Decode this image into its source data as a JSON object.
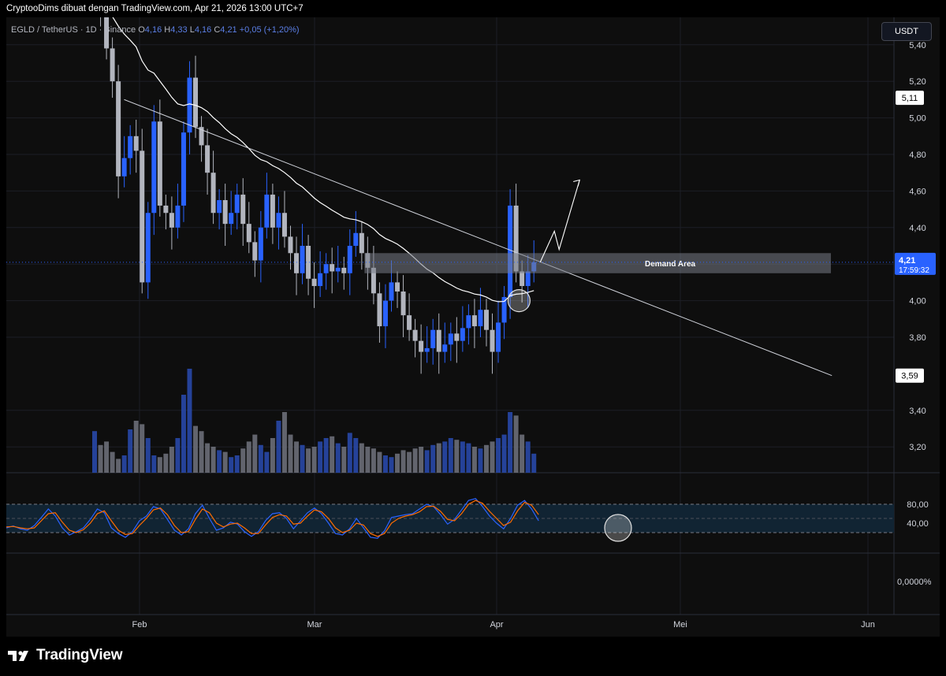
{
  "header": {
    "publisher_line": "CryptooDims dibuat dengan TradingView.com, Apr 21, 2026 13:00 UTC+7"
  },
  "legend": {
    "symbol": "EGLD / TetherUS · 1D · Binance",
    "o_label": "O",
    "o_value": "4,16",
    "h_label": "H",
    "h_value": "4,33",
    "l_label": "L",
    "l_value": "4,16",
    "c_label": "C",
    "c_value": "4,21",
    "change": "+0,05 (+1,20%)"
  },
  "currency_button": "USDT",
  "footer": {
    "logo_text": "TradingView"
  },
  "colors": {
    "bull": "#2962ff",
    "bear": "#b2b5be",
    "ma_line": "#ffffff",
    "stoch_k": "#2962ff",
    "stoch_d": "#ff6d00",
    "demand_zone": "#787b86"
  },
  "chart_data": [
    {
      "type": "candlestick",
      "symbol": "EGLD / TetherUS",
      "timeframe": "1D",
      "ylim": [
        3.05,
        5.55
      ],
      "y_ticks": [
        5.4,
        5.2,
        5.0,
        4.8,
        4.6,
        4.4,
        4.2,
        4.0,
        3.8,
        3.4,
        3.2
      ],
      "y_tick_labels": [
        "5,40",
        "5,20",
        "5,00",
        "4,80",
        "4,60",
        "4,40",
        "4,20",
        "4,00",
        "3,80",
        "3,40",
        "3,20"
      ],
      "x_tick_labels": [
        "Feb",
        "Mar",
        "Apr",
        "Mei",
        "Jun"
      ],
      "price_labels": [
        {
          "value": 5.11,
          "label": "5,11"
        },
        {
          "value": 3.59,
          "label": "3,59"
        }
      ],
      "last_price": {
        "value": 4.21,
        "label": "4,21",
        "countdown": "17:59:32"
      },
      "closes": [
        5.7,
        5.62,
        5.38,
        5.2,
        4.68,
        4.78,
        4.9,
        4.82,
        4.1,
        4.48,
        4.98,
        4.52,
        4.48,
        4.4,
        4.52,
        4.92,
        5.22,
        4.95,
        4.85,
        4.7,
        4.48,
        4.55,
        4.42,
        4.48,
        4.58,
        4.42,
        4.32,
        4.22,
        4.4,
        4.58,
        4.4,
        4.48,
        4.35,
        4.26,
        4.15,
        4.3,
        4.12,
        4.08,
        4.15,
        4.2,
        4.16,
        4.18,
        4.15,
        4.3,
        4.37,
        4.26,
        4.18,
        4.04,
        3.86,
        4.0,
        4.1,
        4.05,
        3.92,
        3.84,
        3.78,
        3.72,
        3.74,
        3.84,
        3.72,
        3.76,
        3.82,
        3.78,
        3.85,
        3.92,
        3.86,
        3.95,
        3.84,
        3.72,
        3.88,
        4.02,
        4.52,
        4.16,
        4.08,
        4.16,
        4.21
      ],
      "moving_average_start": [
        5.8,
        5.68,
        5.58
      ],
      "trendline": {
        "from": [
          4.98,
          5.1
        ],
        "to": [
          124.2,
          3.59
        ]
      },
      "demand_area": {
        "label": "Demand Area",
        "top": 4.26,
        "bottom": 4.15
      },
      "projection": [
        [
          4.21
        ],
        [
          4.38
        ],
        [
          4.28
        ],
        [
          4.66
        ]
      ],
      "volume": [
        24,
        16,
        18,
        12,
        8,
        10,
        25,
        30,
        28,
        20,
        10,
        9,
        11,
        15,
        20,
        45,
        60,
        27,
        24,
        17,
        15,
        13,
        12,
        9,
        10,
        14,
        18,
        22,
        16,
        12,
        20,
        30,
        35,
        22,
        18,
        16,
        14,
        15,
        18,
        20,
        21,
        17,
        15,
        23,
        20,
        17,
        15,
        14,
        12,
        10,
        9,
        11,
        13,
        12,
        14,
        15,
        13,
        16,
        17,
        18,
        20,
        19,
        18,
        17,
        15,
        14,
        16,
        18,
        20,
        22,
        35,
        33,
        22,
        18,
        11
      ]
    },
    {
      "type": "line",
      "name": "Stoch RSI",
      "ylim": [
        0,
        100
      ],
      "y_tick_labels": [
        {
          "value": 80,
          "label": "80,00"
        },
        {
          "value": 40,
          "label": "40,00"
        }
      ],
      "bands": [
        20,
        80
      ],
      "series": [
        {
          "values": [
            30,
            34,
            28,
            25,
            35,
            52,
            70,
            55,
            30,
            15,
            22,
            30,
            48,
            70,
            62,
            30,
            18,
            10,
            22,
            45,
            55,
            75,
            70,
            48,
            25,
            15,
            28,
            60,
            78,
            50,
            25,
            30,
            42,
            38,
            22,
            12,
            22,
            45,
            60,
            62,
            50,
            28,
            45,
            62,
            72,
            60,
            40,
            18,
            15,
            28,
            50,
            30,
            10,
            8,
            24,
            52,
            55,
            58,
            60,
            70,
            80,
            75,
            58,
            38,
            48,
            68,
            88,
            92,
            75,
            55,
            40,
            28,
            50,
            78,
            88,
            70,
            45
          ]
        },
        {
          "values": [
            32,
            33,
            30,
            28,
            30,
            45,
            60,
            62,
            42,
            25,
            20,
            26,
            40,
            60,
            66,
            45,
            25,
            16,
            18,
            35,
            50,
            68,
            72,
            58,
            35,
            20,
            22,
            48,
            70,
            62,
            40,
            32,
            38,
            40,
            30,
            18,
            18,
            36,
            52,
            58,
            55,
            38,
            40,
            55,
            68,
            64,
            50,
            30,
            20,
            25,
            40,
            36,
            18,
            12,
            18,
            40,
            50,
            55,
            58,
            64,
            75,
            76,
            65,
            48,
            45,
            60,
            80,
            88,
            82,
            65,
            50,
            35,
            42,
            66,
            84,
            78,
            58
          ]
        }
      ]
    },
    {
      "type": "line",
      "name": "",
      "y_tick_labels": [
        {
          "value": 0,
          "label": "0,0000%"
        }
      ],
      "values": []
    }
  ]
}
